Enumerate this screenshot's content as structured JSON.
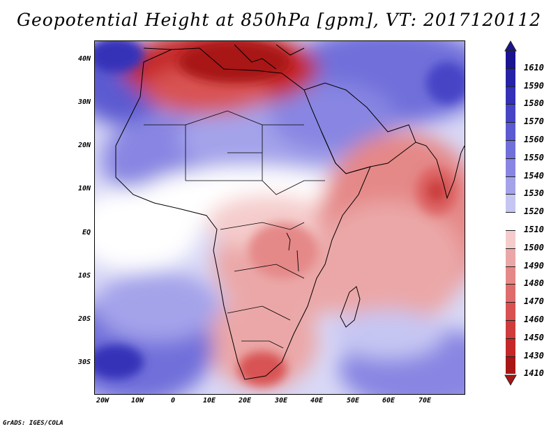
{
  "title": "Geopotential Height at 850hPa [gpm], VT: 2017120112",
  "credit": "GrADS: IGES/COLA",
  "map": {
    "region": "Africa, Arabia and western Indian Ocean",
    "lon_range": [
      -25,
      80
    ],
    "lat_range": [
      -37,
      45
    ],
    "lat_labels": [
      {
        "lat": 40,
        "text": "40N"
      },
      {
        "lat": 30,
        "text": "30N"
      },
      {
        "lat": 20,
        "text": "20N"
      },
      {
        "lat": 10,
        "text": "10N"
      },
      {
        "lat": 0,
        "text": "EQ"
      },
      {
        "lat": -10,
        "text": "10S"
      },
      {
        "lat": -20,
        "text": "20S"
      },
      {
        "lat": -30,
        "text": "30S"
      }
    ],
    "lon_labels": [
      {
        "lon": -20,
        "text": "20W"
      },
      {
        "lon": -10,
        "text": "10W"
      },
      {
        "lon": 0,
        "text": "0"
      },
      {
        "lon": 10,
        "text": "10E"
      },
      {
        "lon": 20,
        "text": "20E"
      },
      {
        "lon": 30,
        "text": "30E"
      },
      {
        "lon": 40,
        "text": "40E"
      },
      {
        "lon": 50,
        "text": "50E"
      },
      {
        "lon": 60,
        "text": "60E"
      },
      {
        "lon": 70,
        "text": "70E"
      }
    ]
  },
  "colorbar": {
    "levels": [
      {
        "label": "1610",
        "color": "#1a1490"
      },
      {
        "label": "1590",
        "color": "#2622a8"
      },
      {
        "label": "1580",
        "color": "#3431b8"
      },
      {
        "label": "1570",
        "color": "#4745c6"
      },
      {
        "label": "1560",
        "color": "#5b5ad0"
      },
      {
        "label": "1550",
        "color": "#716fda"
      },
      {
        "label": "1540",
        "color": "#8886e2"
      },
      {
        "label": "1530",
        "color": "#a4a3ea"
      },
      {
        "label": "1520",
        "color": "#c6c6f3"
      },
      {
        "label": "1510",
        "color": "#ffffff"
      },
      {
        "label": "1500",
        "color": "#f5cccc"
      },
      {
        "label": "1490",
        "color": "#eba7a7"
      },
      {
        "label": "1480",
        "color": "#e58888"
      },
      {
        "label": "1470",
        "color": "#df6c6c"
      },
      {
        "label": "1460",
        "color": "#d85252"
      },
      {
        "label": "1450",
        "color": "#d03c3c"
      },
      {
        "label": "1430",
        "color": "#c42828"
      },
      {
        "label": "1410",
        "color": "#a81616"
      }
    ]
  },
  "colors": {
    "low": "#a81616",
    "high": "#1a1490",
    "neutral": "#ffffff"
  }
}
